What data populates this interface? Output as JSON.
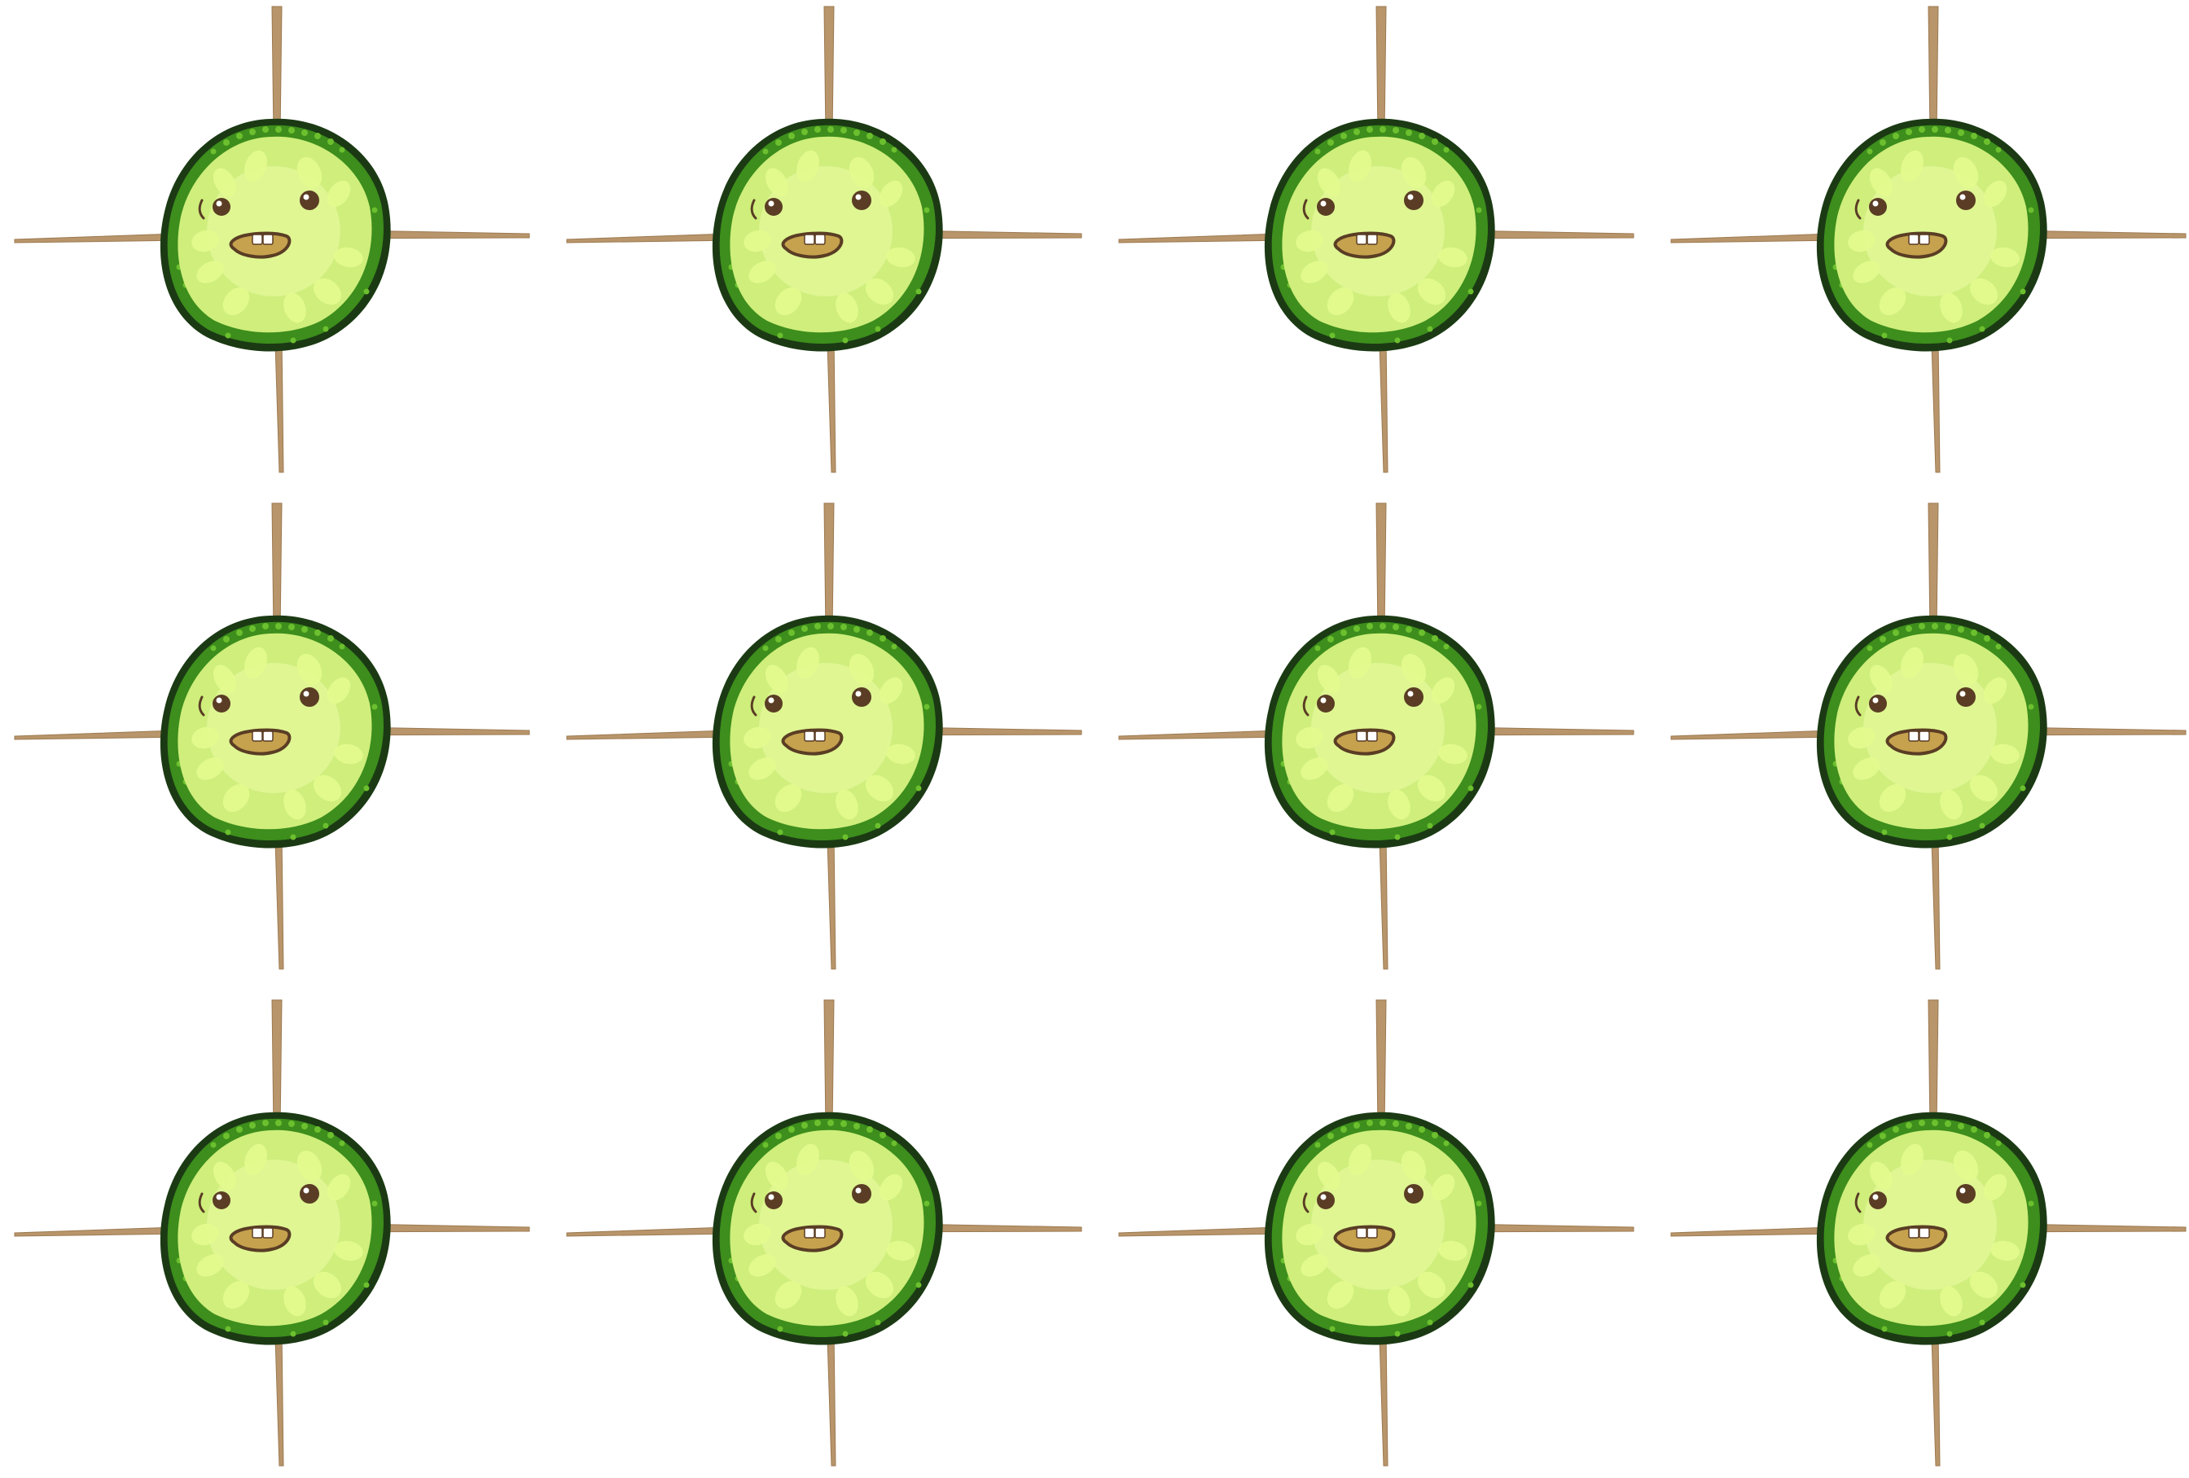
{
  "sheet": {
    "rows": 3,
    "columns": 4,
    "frame_count": 12,
    "background_color": "#ffffff"
  },
  "character": {
    "icon": "cucumber-slice-character-icon",
    "rind_outline_color": "#1b3a14",
    "rind_color": "#3d8e1c",
    "rind_speck_color": "#6cbf2e",
    "flesh_color": "#cfee7c",
    "flesh_highlight_color": "#f2ffb0",
    "seed_color": "#e3fb8e",
    "eye_color": "#5a3d24",
    "eye_shine_color": "#ffffff",
    "mouth_fill_color": "#c6a24e",
    "mouth_outline_color": "#5a3d24",
    "tooth_color": "#ffffff",
    "toothpick_color": "#b8956a",
    "toothpick_shade_color": "#9c7a52"
  },
  "frames": [
    {
      "id": 1,
      "row": 1,
      "col": 1
    },
    {
      "id": 2,
      "row": 1,
      "col": 2
    },
    {
      "id": 3,
      "row": 1,
      "col": 3
    },
    {
      "id": 4,
      "row": 1,
      "col": 4
    },
    {
      "id": 5,
      "row": 2,
      "col": 1
    },
    {
      "id": 6,
      "row": 2,
      "col": 2
    },
    {
      "id": 7,
      "row": 2,
      "col": 3
    },
    {
      "id": 8,
      "row": 2,
      "col": 4
    },
    {
      "id": 9,
      "row": 3,
      "col": 1
    },
    {
      "id": 10,
      "row": 3,
      "col": 2
    },
    {
      "id": 11,
      "row": 3,
      "col": 3
    },
    {
      "id": 12,
      "row": 3,
      "col": 4
    }
  ]
}
